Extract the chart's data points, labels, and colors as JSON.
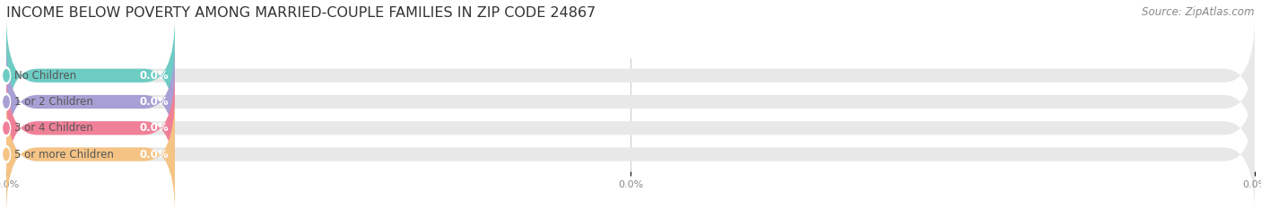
{
  "title": "INCOME BELOW POVERTY AMONG MARRIED-COUPLE FAMILIES IN ZIP CODE 24867",
  "source_text": "Source: ZipAtlas.com",
  "categories": [
    "No Children",
    "1 or 2 Children",
    "3 or 4 Children",
    "5 or more Children"
  ],
  "values": [
    0.0,
    0.0,
    0.0,
    0.0
  ],
  "bar_colors": [
    "#6dccc4",
    "#a89fd4",
    "#f08098",
    "#f5c485"
  ],
  "bar_bg_color": "#e8e8e8",
  "value_labels": [
    "0.0%",
    "0.0%",
    "0.0%",
    "0.0%"
  ],
  "xlim": [
    0,
    100
  ],
  "xtick_positions": [
    0.0,
    50.0,
    100.0
  ],
  "xtick_labels": [
    "0.0%",
    "0.0%",
    "0.0%"
  ],
  "bg_color": "#ffffff",
  "title_fontsize": 11.5,
  "label_fontsize": 8.5,
  "source_fontsize": 8.5,
  "bar_height": 0.52,
  "value_label_color": "#ffffff",
  "colored_bar_width": 13.5,
  "circle_color": "#ffffff",
  "category_label_color": "#555555",
  "grid_color": "#cccccc"
}
